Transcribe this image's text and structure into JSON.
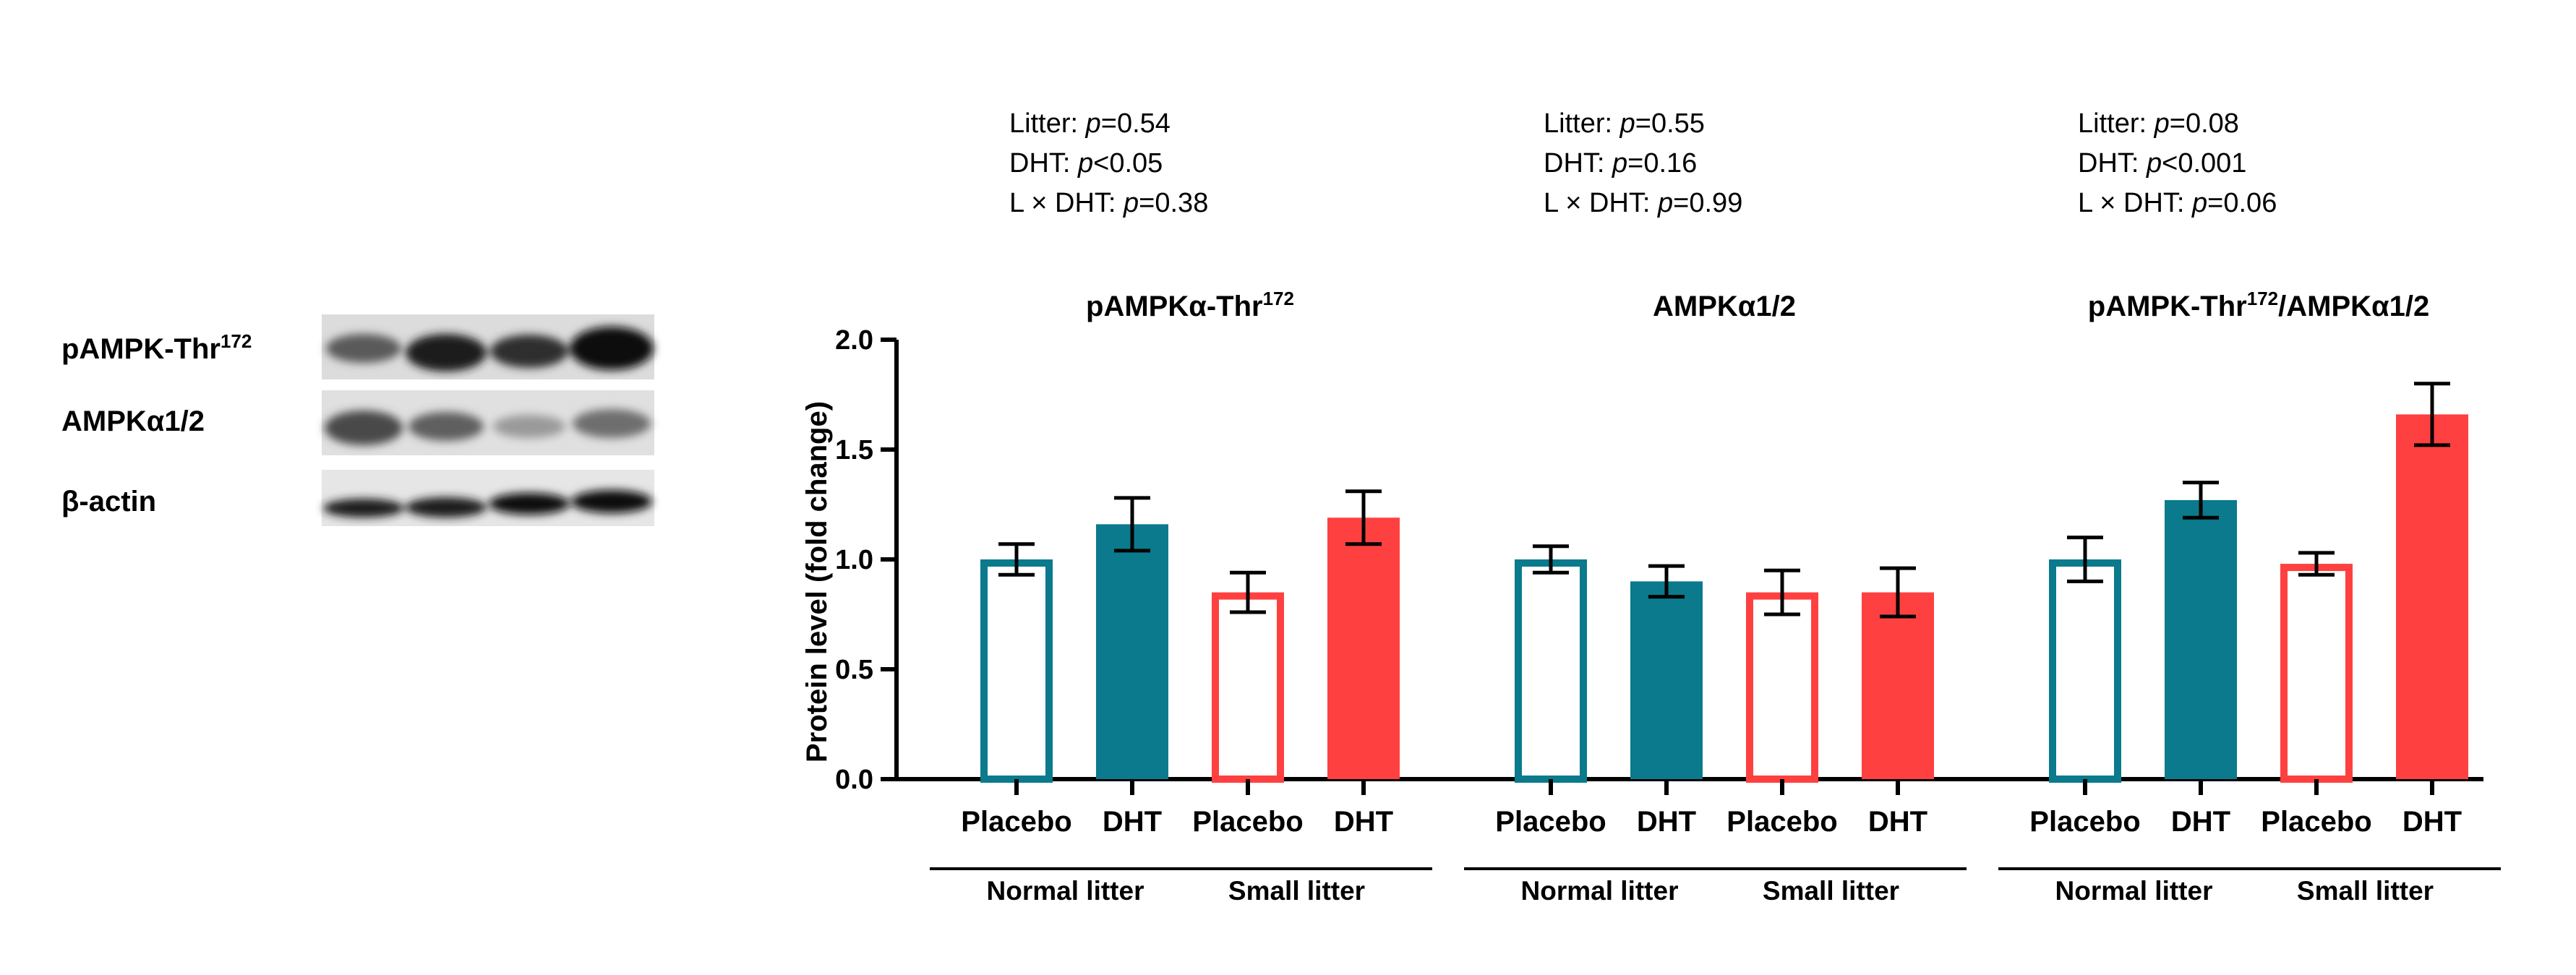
{
  "blot": {
    "rows": [
      {
        "label": "pAMPK-Thr",
        "sup": "172"
      },
      {
        "label": "AMPKα1/2",
        "sup": ""
      },
      {
        "label": "β-actin",
        "sup": ""
      }
    ]
  },
  "colors": {
    "normal": "#0a7a8c",
    "small": "#ff4040",
    "axis": "#000000",
    "blot_bg": "#dcdcdc",
    "band": "#1a1a1a"
  },
  "chart_data": [
    {
      "type": "bar",
      "title": "pAMPKα-Thr",
      "title_sup": "172",
      "title_suffix": "",
      "stats": {
        "litter": {
          "label": "Litter: ",
          "p_label": "p",
          "value": "=0.54"
        },
        "dht": {
          "label": "DHT: ",
          "p_label": "p",
          "value": "<0.05"
        },
        "interaction": {
          "label": "L × DHT: ",
          "p_label": "p",
          "value": "=0.38"
        }
      },
      "categories": [
        "Placebo",
        "DHT",
        "Placebo",
        "DHT"
      ],
      "groups": [
        "Normal litter",
        "Small litter"
      ],
      "values": [
        1.0,
        1.16,
        0.85,
        1.19
      ],
      "errors": [
        0.07,
        0.12,
        0.09,
        0.12
      ],
      "fills": [
        "open",
        "filled",
        "open",
        "filled"
      ],
      "series_colors": [
        "normal",
        "normal",
        "small",
        "small"
      ]
    },
    {
      "type": "bar",
      "title": "AMPKα1/2",
      "title_sup": "",
      "title_suffix": "",
      "stats": {
        "litter": {
          "label": "Litter: ",
          "p_label": "p",
          "value": "=0.55"
        },
        "dht": {
          "label": "DHT: ",
          "p_label": "p",
          "value": "=0.16"
        },
        "interaction": {
          "label": "L × DHT: ",
          "p_label": "p",
          "value": "=0.99"
        }
      },
      "categories": [
        "Placebo",
        "DHT",
        "Placebo",
        "DHT"
      ],
      "groups": [
        "Normal litter",
        "Small litter"
      ],
      "values": [
        1.0,
        0.9,
        0.85,
        0.85
      ],
      "errors": [
        0.06,
        0.07,
        0.1,
        0.11
      ],
      "fills": [
        "open",
        "filled",
        "open",
        "filled"
      ],
      "series_colors": [
        "normal",
        "normal",
        "small",
        "small"
      ]
    },
    {
      "type": "bar",
      "title": "pAMPK-Thr",
      "title_sup": "172",
      "title_suffix": "/AMPKα1/2",
      "stats": {
        "litter": {
          "label": "Litter: ",
          "p_label": "p",
          "value": "=0.08"
        },
        "dht": {
          "label": "DHT: ",
          "p_label": "p",
          "value": "<0.001"
        },
        "interaction": {
          "label": "L × DHT: ",
          "p_label": "p",
          "value": "=0.06"
        }
      },
      "categories": [
        "Placebo",
        "DHT",
        "Placebo",
        "DHT"
      ],
      "groups": [
        "Normal litter",
        "Small litter"
      ],
      "values": [
        1.0,
        1.27,
        0.98,
        1.66
      ],
      "errors": [
        0.1,
        0.08,
        0.05,
        0.14
      ],
      "fills": [
        "open",
        "filled",
        "open",
        "filled"
      ],
      "series_colors": [
        "normal",
        "normal",
        "small",
        "small"
      ]
    }
  ],
  "axis": {
    "ylabel": "Protein level (fold change)",
    "ylim": [
      0,
      2.0
    ],
    "ticks": [
      "0.0",
      "0.5",
      "1.0",
      "1.5",
      "2.0"
    ],
    "tick_values": [
      0,
      0.5,
      1.0,
      1.5,
      2.0
    ]
  }
}
